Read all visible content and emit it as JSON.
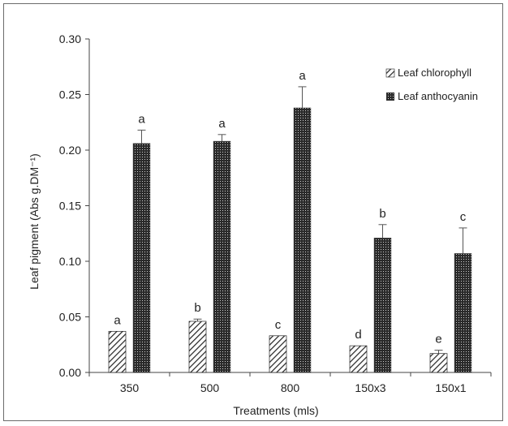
{
  "chart_data": {
    "type": "bar",
    "xlabel": "Treatments (mls)",
    "ylabel": "Leaf pigment (Abs g.DM⁻¹)",
    "ylim": [
      0,
      0.3
    ],
    "yticks": [
      "0.00",
      "0.05",
      "0.10",
      "0.15",
      "0.20",
      "0.25",
      "0.30"
    ],
    "categories": [
      "350",
      "500",
      "800",
      "150x3",
      "150x1"
    ],
    "legend_position": "top-right",
    "grid": false,
    "series": [
      {
        "name": "Leaf chlorophyll",
        "pattern": "diagonal-hatch",
        "values": [
          0.037,
          0.046,
          0.033,
          0.024,
          0.017
        ],
        "errors": [
          0.0,
          0.002,
          0.0,
          0.0,
          0.003
        ],
        "labels": [
          "a",
          "b",
          "c",
          "d",
          "e"
        ]
      },
      {
        "name": "Leaf anthocyanin",
        "pattern": "dotted",
        "values": [
          0.206,
          0.208,
          0.238,
          0.121,
          0.107
        ],
        "errors": [
          0.012,
          0.006,
          0.019,
          0.012,
          0.023
        ],
        "labels": [
          "a",
          "a",
          "a",
          "b",
          "c"
        ]
      }
    ]
  }
}
